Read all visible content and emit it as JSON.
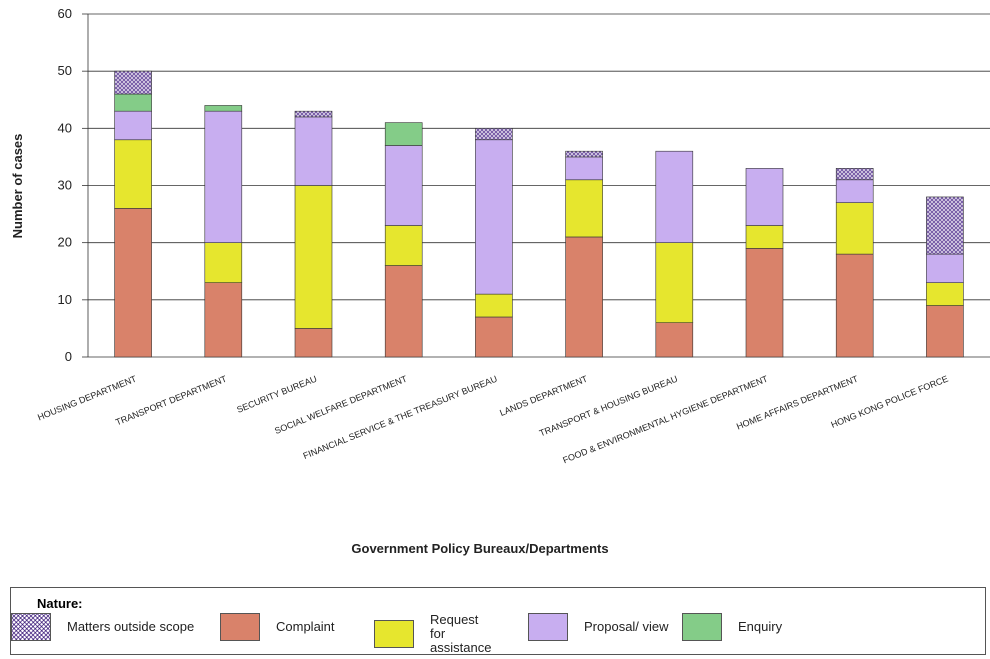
{
  "chart_data": {
    "type": "stacked-bar",
    "y_label": "Number of cases",
    "x_label": "Government Policy Bureaux/Departments",
    "legend_title": "Nature:",
    "categories": [
      "HOUSING DEPARTMENT",
      "TRANSPORT DEPARTMENT",
      "SECURITY BUREAU",
      "SOCIAL WELFARE DEPARTMENT",
      "FINANCIAL SERVICE & THE TREASURY BUREAU",
      "LANDS DEPARTMENT",
      "TRANSPORT & HOUSING BUREAU",
      "FOOD & ENVIRONMENTAL HYGIENE DEPARTMENT",
      "HOME AFFAIRS DEPARTMENT",
      "HONG KONG POLICE FORCE"
    ],
    "series": [
      {
        "name": "Complaint",
        "color": "#d9826a",
        "values": [
          26,
          13,
          5,
          16,
          7,
          21,
          6,
          19,
          18,
          9
        ]
      },
      {
        "name": "Request for assistance",
        "color": "#e6e62e",
        "values": [
          12,
          7,
          25,
          7,
          4,
          10,
          14,
          4,
          9,
          4
        ]
      },
      {
        "name": "Proposal/ view",
        "color": "#c8aef0",
        "values": [
          5,
          23,
          12,
          14,
          27,
          4,
          16,
          10,
          4,
          5
        ]
      },
      {
        "name": "Enquiry",
        "color": "#84cc88",
        "values": [
          3,
          1,
          0,
          4,
          0,
          0,
          0,
          0,
          0,
          0
        ]
      },
      {
        "name": "Matters outside scope",
        "color": "#7a5fa8",
        "values": [
          4,
          0,
          1,
          0,
          2,
          1,
          0,
          0,
          2,
          10
        ]
      }
    ],
    "ylim": [
      0,
      60
    ],
    "yticks": [
      0,
      10,
      20,
      30,
      40,
      50,
      60
    ],
    "grid": true
  }
}
